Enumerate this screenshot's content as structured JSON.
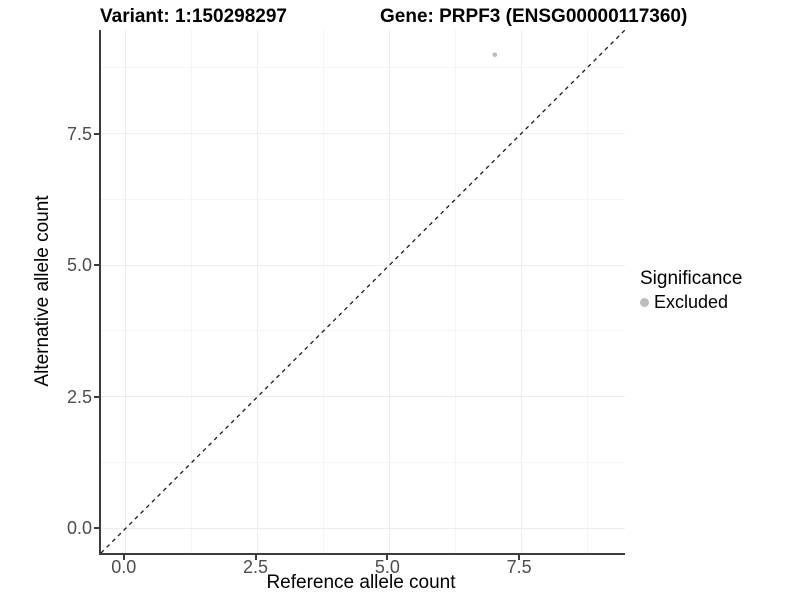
{
  "titles": {
    "left": "Variant: 1:150298297",
    "right": "Gene: PRPF3 (ENSG00000117360)"
  },
  "chart_data": {
    "type": "scatter",
    "title_left": "Variant: 1:150298297",
    "title_right": "Gene: PRPF3 (ENSG00000117360)",
    "xlabel": "Reference allele count",
    "ylabel": "Alternative allele count",
    "xlim": [
      -0.47,
      9.47
    ],
    "ylim": [
      -0.47,
      9.47
    ],
    "x_ticks": [
      0.0,
      2.5,
      5.0,
      7.5
    ],
    "y_ticks": [
      0.0,
      2.5,
      5.0,
      7.5
    ],
    "x_tick_labels": [
      "0.0",
      "2.5",
      "5.0",
      "7.5"
    ],
    "y_tick_labels": [
      "0.0",
      "2.5",
      "5.0",
      "7.5"
    ],
    "x_minor_ticks": [
      1.25,
      3.75,
      6.25,
      8.75
    ],
    "y_minor_ticks": [
      1.25,
      3.75,
      6.25,
      8.75
    ],
    "grid": true,
    "points": [
      {
        "x": 7,
        "y": 9,
        "series": "Excluded",
        "color": "#bdbdbd",
        "radius": 2.4
      }
    ],
    "reference_line": {
      "kind": "abline",
      "slope": 1,
      "intercept": 0,
      "style": "dashed",
      "color": "#1a1a1a"
    },
    "legend": {
      "title": "Significance",
      "position": "right",
      "entries": [
        {
          "label": "Excluded",
          "color": "#bdbdbd"
        }
      ]
    }
  },
  "colors": {
    "axis_line": "#3c3c3c",
    "tick_text": "#4d4d4d",
    "grid_major": "#ededed",
    "grid_minor": "#f5f5f5",
    "background": "#ffffff"
  }
}
